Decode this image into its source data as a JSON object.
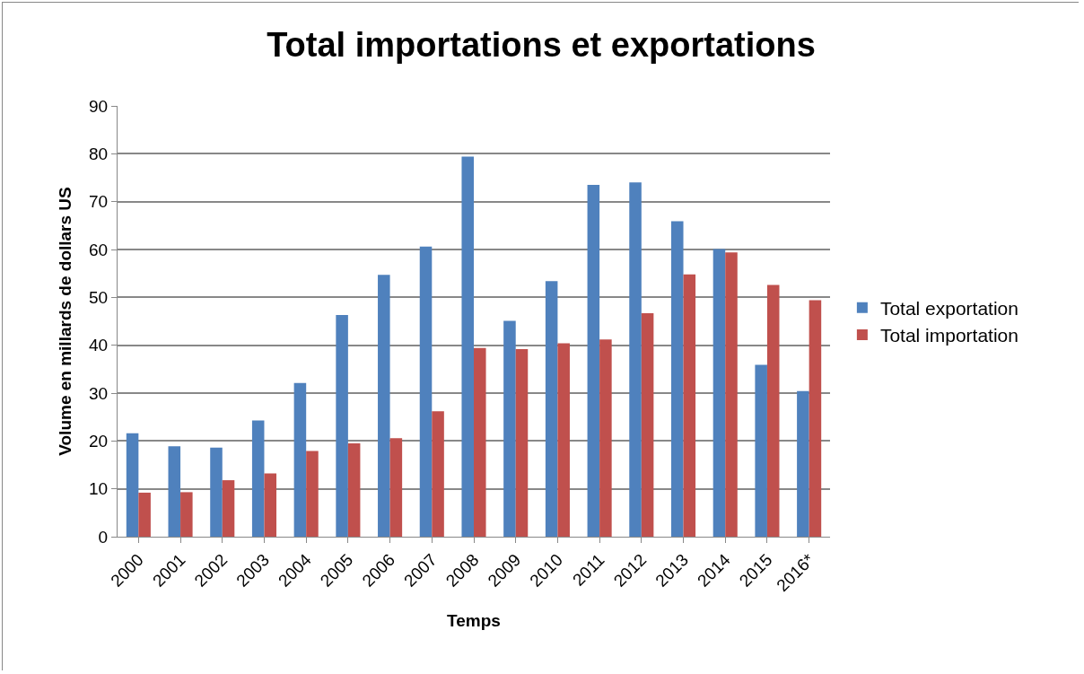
{
  "chart_data": {
    "type": "bar",
    "title": "Total importations et exportations",
    "xlabel": "Temps",
    "ylabel": "Volume en millards de dollars US",
    "categories": [
      "2000",
      "2001",
      "2002",
      "2003",
      "2004",
      "2005",
      "2006",
      "2007",
      "2008",
      "2009",
      "2010",
      "2011",
      "2012",
      "2013",
      "2014",
      "2015",
      "2016*"
    ],
    "series": [
      {
        "name": "Total exportation",
        "color": "#4f81bd",
        "values": [
          21.6,
          18.9,
          18.6,
          24.3,
          32.1,
          46.3,
          54.7,
          60.6,
          79.4,
          45.1,
          53.4,
          73.5,
          74.0,
          65.9,
          60.1,
          35.9,
          30.4
        ]
      },
      {
        "name": "Total importation",
        "color": "#c0504d",
        "values": [
          9.2,
          9.3,
          11.8,
          13.2,
          17.9,
          19.5,
          20.6,
          26.2,
          39.4,
          39.2,
          40.4,
          41.2,
          46.7,
          54.8,
          59.4,
          52.6,
          49.4
        ]
      }
    ],
    "ylim": [
      0,
      90
    ],
    "yticks": [
      0,
      10,
      20,
      30,
      40,
      50,
      60,
      70,
      80,
      90
    ],
    "grid": "y",
    "legend": "right"
  }
}
